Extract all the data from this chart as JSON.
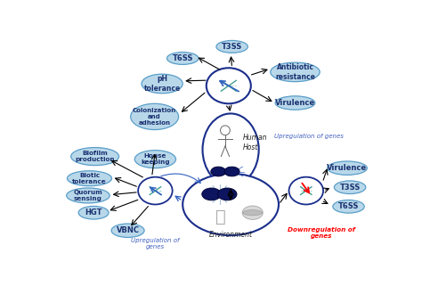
{
  "bg_color": "#ffffff",
  "ellipse_fill": "#b8d8ea",
  "ellipse_edge": "#5a9ec9",
  "dna_ring_edge": "#1a2e8c",
  "env_ring_edge": "#1a2e8c",
  "human_host_label": "Human\nHost",
  "environment_label": "Environment",
  "upregulation_host": "Upregulation of genes",
  "upregulation_env": "Upregulation of\ngenes",
  "downregulation_env": "Downregulation of\ngenes"
}
